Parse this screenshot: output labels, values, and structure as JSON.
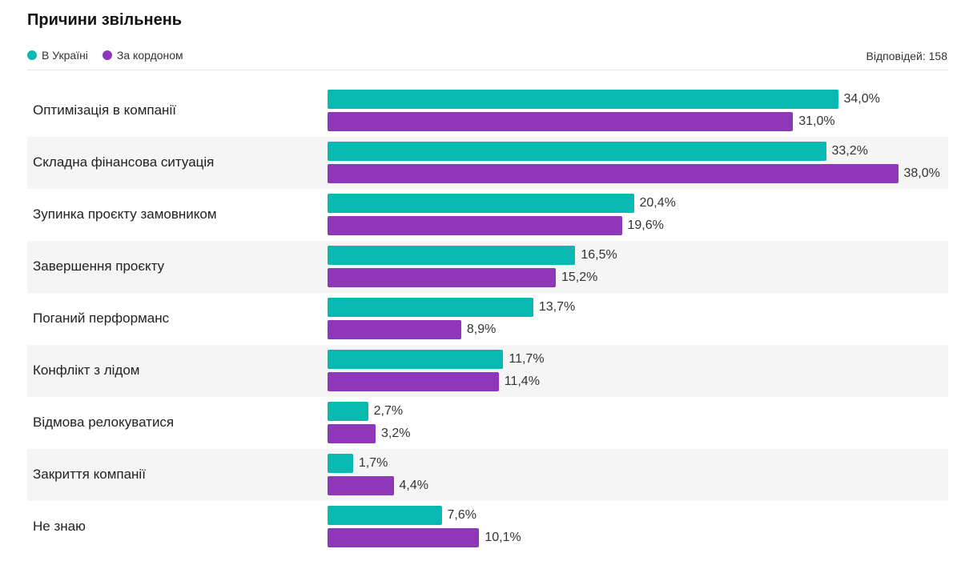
{
  "title": "Причини звільнень",
  "responses": "Відповідей: 158",
  "colors": {
    "ukraine": "#07b9b0",
    "abroad": "#8e37b8",
    "row_alt": "#f5f5f5"
  },
  "chart_data": {
    "type": "bar",
    "orientation": "horizontal",
    "xlim": [
      0,
      38
    ],
    "grid": false,
    "legend_position": "top-left",
    "categories": [
      "Оптимізація в компанії",
      "Складна фінансова ситуація",
      "Зупинка проєкту замовником",
      "Завершення проєкту",
      "Поганий перформанс",
      "Конфлікт з лідом",
      "Відмова релокуватися",
      "Закриття компанії",
      "Не знаю"
    ],
    "series": [
      {
        "name": "В Україні",
        "color": "#07b9b0",
        "values": [
          34.0,
          33.2,
          20.4,
          16.5,
          13.7,
          11.7,
          2.7,
          1.7,
          7.6
        ],
        "labels": [
          "34,0%",
          "33,2%",
          "20,4%",
          "16,5%",
          "13,7%",
          "11,7%",
          "2,7%",
          "1,7%",
          "7,6%"
        ]
      },
      {
        "name": "За кордоном",
        "color": "#8e37b8",
        "values": [
          31.0,
          38.0,
          19.6,
          15.2,
          8.9,
          11.4,
          3.2,
          4.4,
          10.1
        ],
        "labels": [
          "31,0%",
          "38,0%",
          "19,6%",
          "15,2%",
          "8,9%",
          "11,4%",
          "3,2%",
          "4,4%",
          "10,1%"
        ]
      }
    ]
  }
}
